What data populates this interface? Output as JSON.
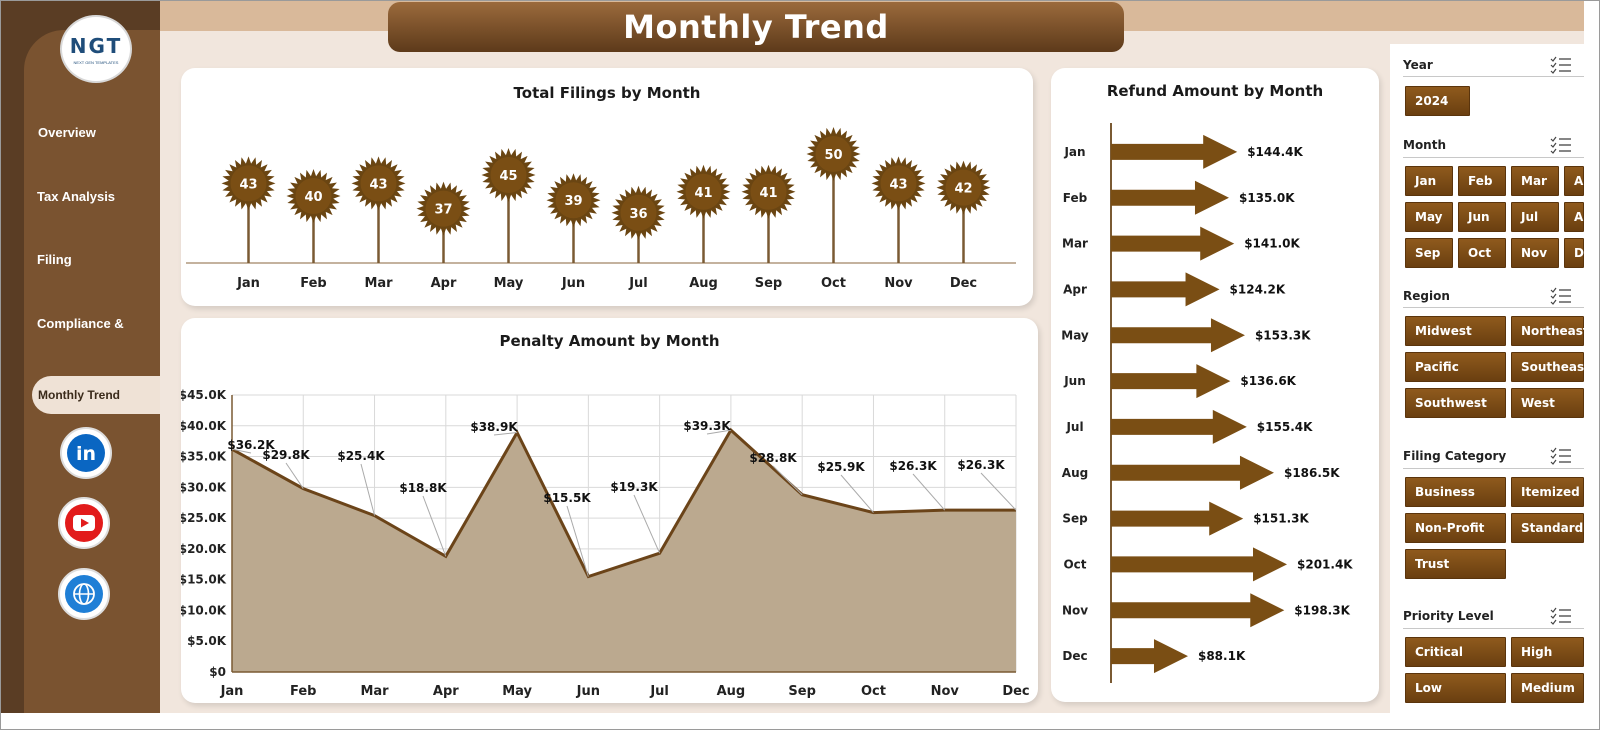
{
  "title": "Monthly Trend",
  "logo": {
    "mark": "NGT",
    "sub": "NEXT GEN TEMPLATES"
  },
  "nav": {
    "overview": "Overview",
    "tax_analysis": "Tax Analysis",
    "filing": "Filing",
    "compliance": "Compliance &",
    "monthly_trend": "Monthly Trend"
  },
  "social": [
    "linkedin-icon",
    "youtube-icon",
    "globe-icon"
  ],
  "colors": {
    "brown_dark": "#5a3d24",
    "brown": "#7a5330",
    "accent": "#6a3f10",
    "area_fill": "#bba98f",
    "area_line": "#6b4419"
  },
  "slicers": {
    "year": {
      "label": "Year",
      "options": [
        "2024"
      ]
    },
    "month": {
      "label": "Month",
      "options": [
        "Jan",
        "Feb",
        "Mar",
        "Ap",
        "May",
        "Jun",
        "Jul",
        "Au",
        "Sep",
        "Oct",
        "Nov",
        "De"
      ]
    },
    "region": {
      "label": "Region",
      "options": [
        "Midwest",
        "Northeast",
        "Pacific",
        "Southeast",
        "Southwest",
        "West"
      ]
    },
    "filing_category": {
      "label": "Filing Category",
      "options": [
        "Business",
        "Itemized",
        "Non-Profit",
        "Standard",
        "Trust"
      ]
    },
    "priority": {
      "label": "Priority Level",
      "options": [
        "Critical",
        "High",
        "Low",
        "Medium"
      ]
    }
  },
  "chart_data": [
    {
      "type": "bar",
      "title": "Total Filings by Month",
      "categories": [
        "Jan",
        "Feb",
        "Mar",
        "Apr",
        "May",
        "Jun",
        "Jul",
        "Aug",
        "Sep",
        "Oct",
        "Nov",
        "Dec"
      ],
      "values": [
        43,
        40,
        43,
        37,
        45,
        39,
        36,
        41,
        41,
        50,
        43,
        42
      ]
    },
    {
      "type": "area",
      "title": "Penalty Amount by Month",
      "categories": [
        "Jan",
        "Feb",
        "Mar",
        "Apr",
        "May",
        "Jun",
        "Jul",
        "Aug",
        "Sep",
        "Oct",
        "Nov",
        "Dec"
      ],
      "values": [
        36.2,
        29.8,
        25.4,
        18.8,
        38.9,
        15.5,
        19.3,
        39.3,
        28.8,
        25.9,
        26.3,
        26.3
      ],
      "labels": [
        "$36.2K",
        "$29.8K",
        "$25.4K",
        "$18.8K",
        "$38.9K",
        "$15.5K",
        "$19.3K",
        "$39.3K",
        "$28.8K",
        "$25.9K",
        "$26.3K",
        "$26.3K"
      ],
      "yticks": [
        "$0",
        "$5.0K",
        "$10.0K",
        "$15.0K",
        "$20.0K",
        "$25.0K",
        "$30.0K",
        "$35.0K",
        "$40.0K",
        "$45.0K"
      ],
      "ylim": [
        0,
        45
      ],
      "grid": true
    },
    {
      "type": "bar",
      "title": "Refund Amount by Month",
      "categories": [
        "Jan",
        "Feb",
        "Mar",
        "Apr",
        "May",
        "Jun",
        "Jul",
        "Aug",
        "Sep",
        "Oct",
        "Nov",
        "Dec"
      ],
      "values": [
        144.4,
        135.0,
        141.0,
        124.2,
        153.3,
        136.6,
        155.4,
        186.5,
        151.3,
        201.4,
        198.3,
        88.1
      ],
      "labels": [
        "$144.4K",
        "$135.0K",
        "$141.0K",
        "$124.2K",
        "$153.3K",
        "$136.6K",
        "$155.4K",
        "$186.5K",
        "$151.3K",
        "$201.4K",
        "$198.3K",
        "$88.1K"
      ]
    }
  ]
}
